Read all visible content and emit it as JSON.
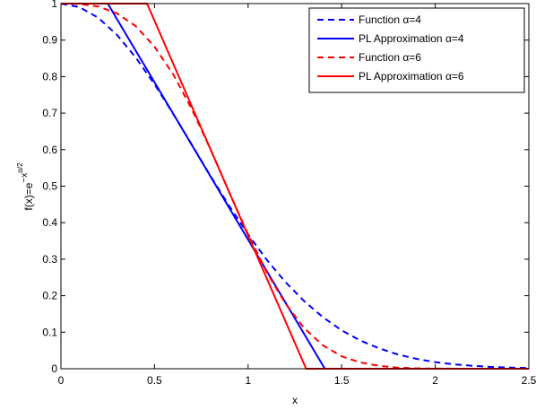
{
  "chart_data": {
    "type": "line",
    "xlabel": "x",
    "ylabel": {
      "base": "f(x)=e",
      "superscript_lead": "−x",
      "superscript_exp": "α/2"
    },
    "xlim": [
      0,
      2.5
    ],
    "ylim": [
      0,
      1
    ],
    "xticks": [
      0,
      0.5,
      1,
      1.5,
      2,
      2.5
    ],
    "xtick_labels": [
      "0",
      "0.5",
      "1",
      "1.5",
      "2",
      "2.5"
    ],
    "yticks": [
      0,
      0.1,
      0.2,
      0.3,
      0.4,
      0.5,
      0.6,
      0.7,
      0.8,
      0.9,
      1
    ],
    "ytick_labels": [
      "0",
      "0.1",
      "0.2",
      "0.3",
      "0.4",
      "0.5",
      "0.6",
      "0.7",
      "0.8",
      "0.9",
      "1"
    ],
    "grid": false,
    "legend_position": "top-right",
    "series": [
      {
        "name": "Function α=4",
        "color": "#0000ff",
        "style": "dashed",
        "x": [
          0,
          0.1,
          0.2,
          0.3,
          0.4,
          0.5,
          0.6,
          0.7,
          0.8,
          0.9,
          1.0,
          1.1,
          1.2,
          1.3,
          1.4,
          1.5,
          1.6,
          1.7,
          1.8,
          1.9,
          2.0,
          2.1,
          2.2,
          2.3,
          2.4,
          2.5
        ],
        "y": [
          1.0,
          0.99,
          0.961,
          0.914,
          0.852,
          0.779,
          0.698,
          0.613,
          0.527,
          0.445,
          0.368,
          0.298,
          0.237,
          0.185,
          0.141,
          0.105,
          0.077,
          0.056,
          0.039,
          0.027,
          0.018,
          0.012,
          0.008,
          0.005,
          0.003,
          0.002
        ]
      },
      {
        "name": "PL Approximation α=4",
        "color": "#0000ff",
        "style": "solid",
        "x": [
          0,
          0.25,
          1.41,
          2.5
        ],
        "y": [
          1.0,
          1.0,
          0.0,
          0.0
        ]
      },
      {
        "name": "Function α=6",
        "color": "#ff0000",
        "style": "dashed",
        "x": [
          0,
          0.1,
          0.2,
          0.3,
          0.4,
          0.5,
          0.6,
          0.7,
          0.8,
          0.9,
          1.0,
          1.1,
          1.2,
          1.3,
          1.4,
          1.5,
          1.6,
          1.7,
          1.8,
          1.9,
          2.0,
          2.1,
          2.2,
          2.3,
          2.4,
          2.5
        ],
        "y": [
          1.0,
          0.999,
          0.992,
          0.973,
          0.938,
          0.882,
          0.806,
          0.71,
          0.6,
          0.482,
          0.368,
          0.264,
          0.178,
          0.111,
          0.064,
          0.034,
          0.017,
          0.008,
          0.003,
          0.001,
          0.0003,
          0.0001,
          0.0,
          0.0,
          0.0,
          0.0
        ]
      },
      {
        "name": "PL Approximation α=6",
        "color": "#ff0000",
        "style": "solid",
        "x": [
          0,
          0.46,
          1.31,
          2.5
        ],
        "y": [
          1.0,
          1.0,
          0.0,
          0.0
        ]
      }
    ]
  }
}
